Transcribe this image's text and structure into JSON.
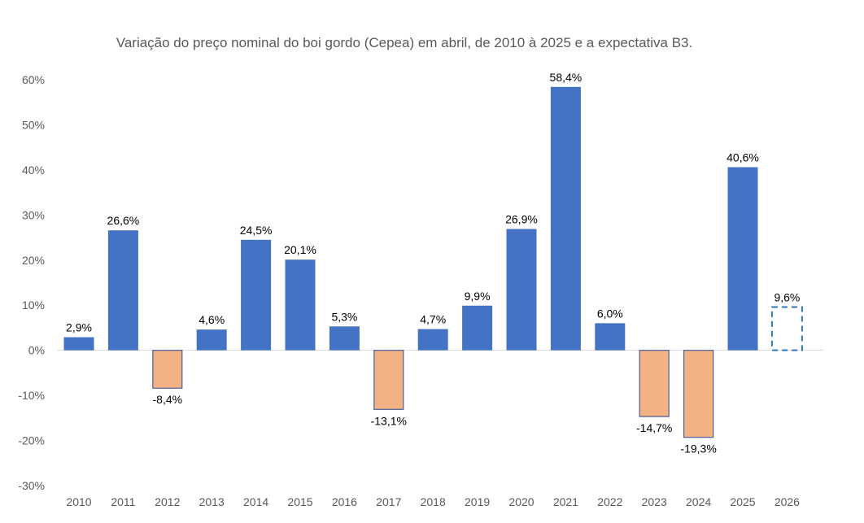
{
  "chart_data": {
    "type": "bar",
    "title": "Variação do preço nominal do boi gordo (Cepea) em abril, de 2010 à 2025 e a expectativa B3.",
    "xlabel": "",
    "ylabel": "",
    "ylim": [
      -30,
      60
    ],
    "y_ticks": [
      60,
      50,
      40,
      30,
      20,
      10,
      0,
      -10,
      -20,
      -30
    ],
    "y_tick_labels": [
      "60%",
      "50%",
      "40%",
      "30%",
      "20%",
      "10%",
      "0%",
      "-10%",
      "-20%",
      "-30%"
    ],
    "categories": [
      "2010",
      "2011",
      "2012",
      "2013",
      "2014",
      "2015",
      "2016",
      "2017",
      "2018",
      "2019",
      "2020",
      "2021",
      "2022",
      "2023",
      "2024",
      "2025",
      "2026"
    ],
    "values": [
      2.9,
      26.6,
      -8.4,
      4.6,
      24.5,
      20.1,
      5.3,
      -13.1,
      4.7,
      9.9,
      26.9,
      58.4,
      6.0,
      -14.7,
      -19.3,
      40.6,
      9.6
    ],
    "data_labels": [
      "2,9%",
      "26,6%",
      "-8,4%",
      "4,6%",
      "24,5%",
      "20,1%",
      "5,3%",
      "-13,1%",
      "4,7%",
      "9,9%",
      "26,9%",
      "58,4%",
      "6,0%",
      "-14,7%",
      "-19,3%",
      "40,6%",
      "9,6%"
    ],
    "projected_categories": [
      "2026"
    ],
    "grid": false,
    "legend": "none",
    "colors": {
      "positive": "#4472c4",
      "negative": "#f4b183",
      "negative_border": "#4a5f9e",
      "projection_border": "#2e75b6"
    }
  }
}
